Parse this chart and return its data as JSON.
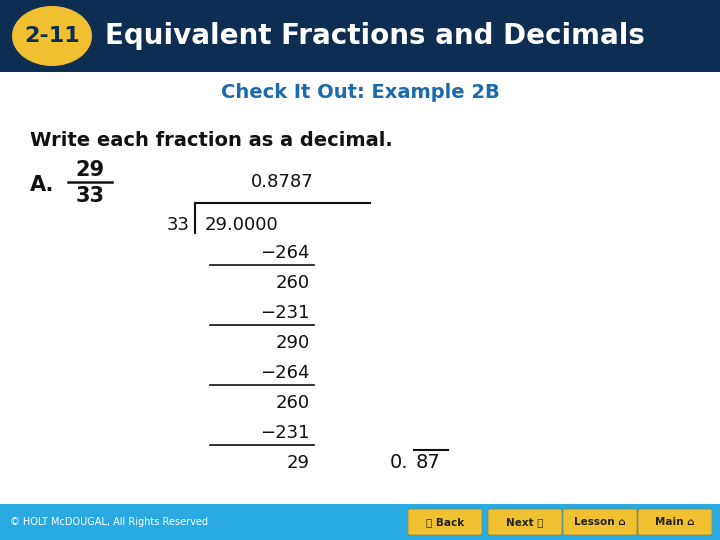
{
  "title_badge": "2-11",
  "title_text": "Equivalent Fractions and Decimals",
  "header_bg": "#0d2d52",
  "header_text_color": "#ffffff",
  "badge_bg": "#f0c030",
  "badge_text_color": "#0d2d52",
  "subtitle": "Check It Out: Example 2B",
  "subtitle_color": "#1a6aad",
  "body_bg": "#ffffff",
  "instruction": "Write each fraction as a decimal.",
  "label_A": "A.",
  "numerator": "29",
  "denominator": "33",
  "footer_text": "© HOLT McDOUGAL, All Rights Reserved",
  "footer_bg": "#29abe2",
  "footer_text_color": "#ffffff",
  "nav_buttons": [
    "Back",
    "Next",
    "Lesson",
    "Main"
  ],
  "nav_bg": "#f0c030",
  "nav_text_color": "#333333"
}
